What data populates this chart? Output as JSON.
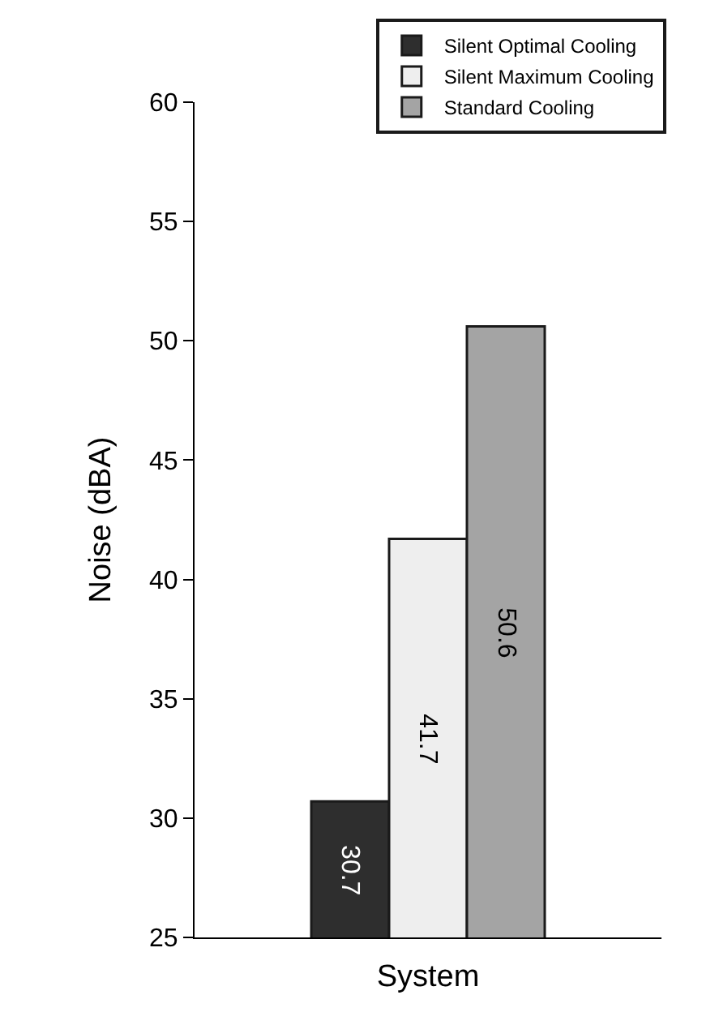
{
  "chart_data": {
    "type": "bar",
    "ylabel": "Noise (dBA)",
    "xlabel": "System",
    "categories": [
      null
    ],
    "series": [
      {
        "name": "Silent Optimal Cooling",
        "color": "#2e2e2e",
        "values": [
          30.7
        ]
      },
      {
        "name": "Silent Maximum Cooling",
        "color": "#eeeeee",
        "values": [
          41.7
        ]
      },
      {
        "name": "Standard Cooling",
        "color": "#a4a4a4",
        "values": [
          50.6
        ]
      }
    ],
    "ylim": [
      25,
      60
    ],
    "yticks": [
      25,
      30,
      35,
      40,
      45,
      50,
      55,
      60
    ],
    "data_labels": true,
    "legend": "top right"
  }
}
